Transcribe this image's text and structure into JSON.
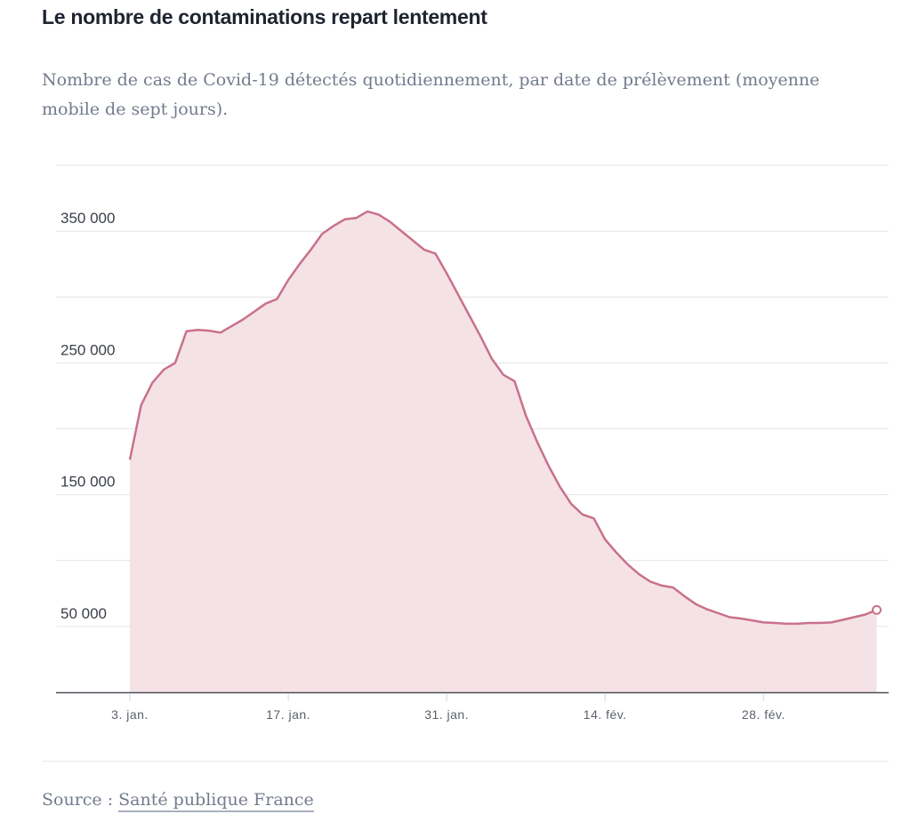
{
  "header": {
    "title": "Le nombre de contaminations repart lentement",
    "subtitle": "Nombre de cas de Covid-19 détectés quotidiennement, par date de prélèvement (moyenne mobile de sept jours)."
  },
  "footer": {
    "source_label": "Source :",
    "source_link": "Santé publique France"
  },
  "colors": {
    "line": "#c9718a",
    "area": "#f5e2e7",
    "grid": "#e4e4e7",
    "axis": "#4a4f58",
    "tick": "#c8d6ee"
  },
  "chart_data": {
    "type": "area",
    "title": "Le nombre de contaminations repart lentement",
    "xlabel": "",
    "ylabel": "",
    "ylim": [
      0,
      400000
    ],
    "xlim_days_from_start": [
      -6.5,
      66.5
    ],
    "grid": true,
    "legend": "none",
    "y_gridlines": [
      0,
      50000,
      100000,
      150000,
      200000,
      250000,
      300000,
      350000,
      400000
    ],
    "y_tick_labels": [
      {
        "value": 50000,
        "label": "50 000"
      },
      {
        "value": 150000,
        "label": "150 000"
      },
      {
        "value": 250000,
        "label": "250 000"
      },
      {
        "value": 350000,
        "label": "350 000"
      }
    ],
    "x_tick_labels": [
      {
        "day": 0,
        "label": "3. jan."
      },
      {
        "day": 14,
        "label": "17. jan."
      },
      {
        "day": 28,
        "label": "31. jan."
      },
      {
        "day": 42,
        "label": "14. fév."
      },
      {
        "day": 56,
        "label": "28. fév."
      }
    ],
    "start_date": "3. jan.",
    "series": [
      {
        "name": "Cas détectés (moyenne mobile 7 jours)",
        "end_marker": true,
        "values": [
          176600,
          218000,
          235000,
          245000,
          250000,
          274000,
          275000,
          274500,
          273000,
          278000,
          283000,
          289000,
          295000,
          298500,
          313000,
          325000,
          336000,
          348000,
          354000,
          359000,
          360000,
          365000,
          362500,
          357000,
          350000,
          343000,
          336000,
          333000,
          318000,
          302000,
          286000,
          270000,
          253000,
          241000,
          236000,
          210000,
          190000,
          172000,
          156000,
          143000,
          135000,
          132000,
          116000,
          106000,
          97000,
          89600,
          84000,
          81000,
          79500,
          73000,
          67000,
          63000,
          60000,
          57000,
          56000,
          54600,
          53000,
          52600,
          52000,
          52000,
          52600,
          52600,
          53000,
          55000,
          57000,
          59000,
          62500
        ]
      }
    ]
  }
}
